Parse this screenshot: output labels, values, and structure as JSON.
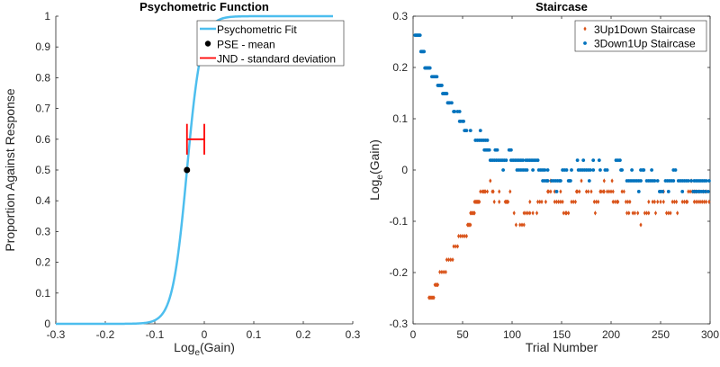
{
  "chart_data": [
    {
      "type": "line",
      "title": "Psychometric Function",
      "xlabel": "Log",
      "xlabel_sub": "e",
      "xlabel_tail": "(Gain)",
      "ylabel": "Proportion Against Response",
      "xlim": [
        -0.3,
        0.3
      ],
      "ylim": [
        0,
        1
      ],
      "xticks": [
        -0.3,
        -0.2,
        -0.1,
        0,
        0.1,
        0.2,
        0.3
      ],
      "xtick_labels": [
        "-0.3",
        "-0.2",
        "-0.1",
        "0",
        "0.1",
        "0.2",
        "0.3"
      ],
      "yticks": [
        0,
        0.1,
        0.2,
        0.3,
        0.4,
        0.5,
        0.6,
        0.7,
        0.8,
        0.9,
        1
      ],
      "ytick_labels": [
        "0",
        "0.1",
        "0.2",
        "0.3",
        "0.4",
        "0.5",
        "0.6",
        "0.7",
        "0.8",
        "0.9",
        "1"
      ],
      "fit": {
        "model": "logistic",
        "mu": -0.035,
        "scale": 0.0146,
        "x_range": [
          -0.3,
          0.26
        ],
        "color": "#4DBEEE"
      },
      "pse": {
        "x": -0.035,
        "y": 0.5,
        "color": "#000000"
      },
      "jnd": {
        "x_start": -0.035,
        "x_end": 0.0,
        "y": 0.6,
        "cap_half_height": 0.05,
        "color": "#FF0000"
      },
      "legend": {
        "position": "top-right",
        "entries": [
          "Psychometric Fit",
          "PSE - mean",
          "JND - standard deviation"
        ]
      }
    },
    {
      "type": "scatter",
      "title": "Staircase",
      "xlabel": "Trial Number",
      "ylabel": "Log",
      "ylabel_sub": "e",
      "ylabel_tail": "(Gain)",
      "xlim": [
        0,
        300
      ],
      "ylim": [
        -0.3,
        0.3
      ],
      "xticks": [
        0,
        50,
        100,
        150,
        200,
        250,
        300
      ],
      "xtick_labels": [
        "0",
        "50",
        "100",
        "150",
        "200",
        "250",
        "300"
      ],
      "yticks": [
        -0.3,
        -0.2,
        -0.1,
        0,
        0.1,
        0.2,
        0.3
      ],
      "ytick_labels": [
        "-0.3",
        "-0.2",
        "-0.1",
        "0",
        "0.1",
        "0.2",
        "0.3"
      ],
      "legend": {
        "position": "top-right",
        "entries": [
          "3Up1Down Staircase",
          "3Down1Up Staircase"
        ]
      },
      "series": [
        {
          "name": "3Up1Down Staircase",
          "marker": "diamond",
          "color": "#D95319",
          "levels": [
            {
              "y": -0.249,
              "trials": [
                16,
                17,
                18,
                19,
                20,
                21
              ]
            },
            {
              "y": -0.224,
              "trials": [
                22,
                23,
                24,
                25
              ]
            },
            {
              "y": -0.199,
              "trials": [
                27,
                29,
                31,
                33
              ]
            },
            {
              "y": -0.175,
              "trials": [
                34,
                36,
                38,
                40
              ]
            },
            {
              "y": -0.149,
              "trials": [
                41,
                43,
                45
              ]
            },
            {
              "y": -0.129,
              "trials": [
                46,
                48,
                50,
                52,
                54
              ]
            },
            {
              "y": -0.107,
              "trials": [
                55,
                56,
                57,
                58,
                104,
                108,
                110,
                112,
                230
              ]
            },
            {
              "y": -0.084,
              "trials": [
                58,
                59,
                60,
                61,
                62,
                102,
                112,
                114,
                116,
                118,
                121,
                125,
                152,
                154,
                155,
                157,
                184,
                216,
                218,
                222,
                224,
                227,
                234,
                236,
                238,
                245,
                256,
                258,
                260,
                267
              ]
            },
            {
              "y": -0.062,
              "trials": [
                62,
                63,
                64,
                65,
                66,
                67,
                82,
                87,
                93,
                94,
                95,
                96,
                118,
                126,
                128,
                130,
                134,
                143,
                145,
                147,
                149,
                151,
                160,
                162,
                164,
                183,
                185,
                187,
                202,
                204,
                206,
                207,
                215,
                217,
                219,
                238,
                242,
                244,
                247,
                250,
                253,
                262,
                264,
                266,
                272,
                274,
                276,
                277,
                284,
                286,
                288,
                290,
                292,
                294,
                296,
                299
              ]
            },
            {
              "y": -0.042,
              "trials": [
                68,
                70,
                71,
                72,
                73,
                75,
                80,
                81,
                87,
                98,
                136,
                137,
                139,
                143,
                149,
                165,
                166,
                168,
                175,
                177,
                180,
                189,
                190,
                192,
                193,
                196,
                198,
                200,
                202,
                211,
                213,
                253,
                278,
                280,
                282,
                284,
                286,
                289,
                293,
                296
              ]
            },
            {
              "y": -0.021,
              "trials": [
                78,
                139,
                170,
                193,
                201,
                281
              ]
            }
          ]
        },
        {
          "name": "3Down1Up Staircase",
          "marker": "dot",
          "color": "#0072BD",
          "levels": [
            {
              "y": 0.263,
              "trials": [
                2,
                3,
                4,
                5,
                6,
                7
              ]
            },
            {
              "y": 0.231,
              "trials": [
                8,
                9,
                10,
                11
              ]
            },
            {
              "y": 0.199,
              "trials": [
                12,
                13,
                14,
                15,
                16,
                17
              ]
            },
            {
              "y": 0.182,
              "trials": [
                19,
                20,
                21,
                22,
                23,
                24
              ]
            },
            {
              "y": 0.165,
              "trials": [
                25,
                26,
                27,
                28,
                29
              ]
            },
            {
              "y": 0.149,
              "trials": [
                30,
                31,
                32,
                33,
                34
              ]
            },
            {
              "y": 0.131,
              "trials": [
                35,
                36,
                37,
                39
              ]
            },
            {
              "y": 0.114,
              "trials": [
                41,
                42,
                45,
                47
              ]
            },
            {
              "y": 0.095,
              "trials": [
                47,
                48,
                50,
                51
              ]
            },
            {
              "y": 0.077,
              "trials": [
                52,
                53,
                54,
                58,
                68
              ]
            },
            {
              "y": 0.058,
              "trials": [
                63,
                65,
                67,
                69,
                71,
                73,
                75
              ]
            },
            {
              "y": 0.039,
              "trials": [
                72,
                73,
                74,
                75,
                76,
                77,
                83,
                84,
                85,
                97,
                98,
                99
              ]
            },
            {
              "y": 0.019,
              "trials": [
                78,
                80,
                82,
                84,
                86,
                88,
                90,
                92,
                94,
                99,
                101,
                103,
                105,
                107,
                109,
                111,
                114,
                116,
                118,
                120,
                122,
                124,
                126,
                166,
                172,
                182,
                188,
                205,
                207,
                209
              ]
            },
            {
              "y": 0.0,
              "trials": [
                91,
                105,
                107,
                109,
                111,
                113,
                115,
                121,
                127,
                129,
                131,
                133,
                136,
                151,
                153,
                155,
                160,
                167,
                169,
                171,
                173,
                175,
                177,
                179,
                182,
                189,
                194,
                196,
                210,
                211,
                221,
                230,
                232,
                233,
                241,
                263,
                265
              ]
            },
            {
              "y": -0.021,
              "trials": [
                131,
                133,
                135,
                136,
                140,
                142,
                144,
                146,
                148,
                149,
                157,
                158,
                159,
                178,
                216,
                218,
                220,
                222,
                224,
                226,
                228,
                230,
                236,
                238,
                240,
                242,
                244,
                247,
                255,
                257,
                259,
                261,
                263,
                268,
                270,
                272,
                274,
                276,
                278,
                281,
                284,
                286,
                288,
                290,
                292,
                294,
                296,
                299
              ]
            },
            {
              "y": -0.042,
              "trials": [
                145,
                228,
                249,
                250,
                252,
                258,
                272,
                283,
                285,
                287,
                289,
                291,
                293,
                295,
                298
              ]
            }
          ]
        }
      ]
    }
  ]
}
